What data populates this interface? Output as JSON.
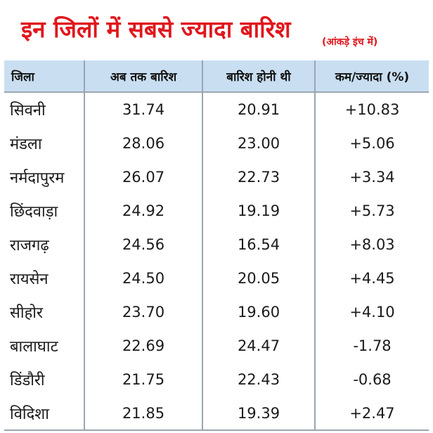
{
  "title": "इन जिलों में सबसे ज्यादा बारिश",
  "subtitle": "(आंकड़े इंच में)",
  "table": {
    "headers": [
      "जिला",
      "अब तक बारिश",
      "बारिश होनी थी",
      "कम/ज्यादा (%)"
    ],
    "rows": [
      [
        "सिवनी",
        "31.74",
        "20.91",
        "+10.83"
      ],
      [
        "मंडला",
        "28.06",
        "23.00",
        "+5.06"
      ],
      [
        "नर्मदापुरम",
        "26.07",
        "22.73",
        "+3.34"
      ],
      [
        "छिंदवाड़ा",
        "24.92",
        "19.19",
        "+5.73"
      ],
      [
        "राजगढ़",
        "24.56",
        "16.54",
        "+8.03"
      ],
      [
        "रायसेन",
        "24.50",
        "20.05",
        "+4.45"
      ],
      [
        "सीहोर",
        "23.70",
        "19.60",
        "+4.10"
      ],
      [
        "बालाघाट",
        "22.69",
        "24.47",
        "-1.78"
      ],
      [
        "डिंडौरी",
        "21.75",
        "22.43",
        "-0.68"
      ],
      [
        "विदिशा",
        "21.85",
        "19.39",
        "+2.47"
      ]
    ]
  },
  "colors": {
    "title": "#e0171d",
    "header_bg": "#c9def1",
    "grid": "#9aa5b1"
  }
}
